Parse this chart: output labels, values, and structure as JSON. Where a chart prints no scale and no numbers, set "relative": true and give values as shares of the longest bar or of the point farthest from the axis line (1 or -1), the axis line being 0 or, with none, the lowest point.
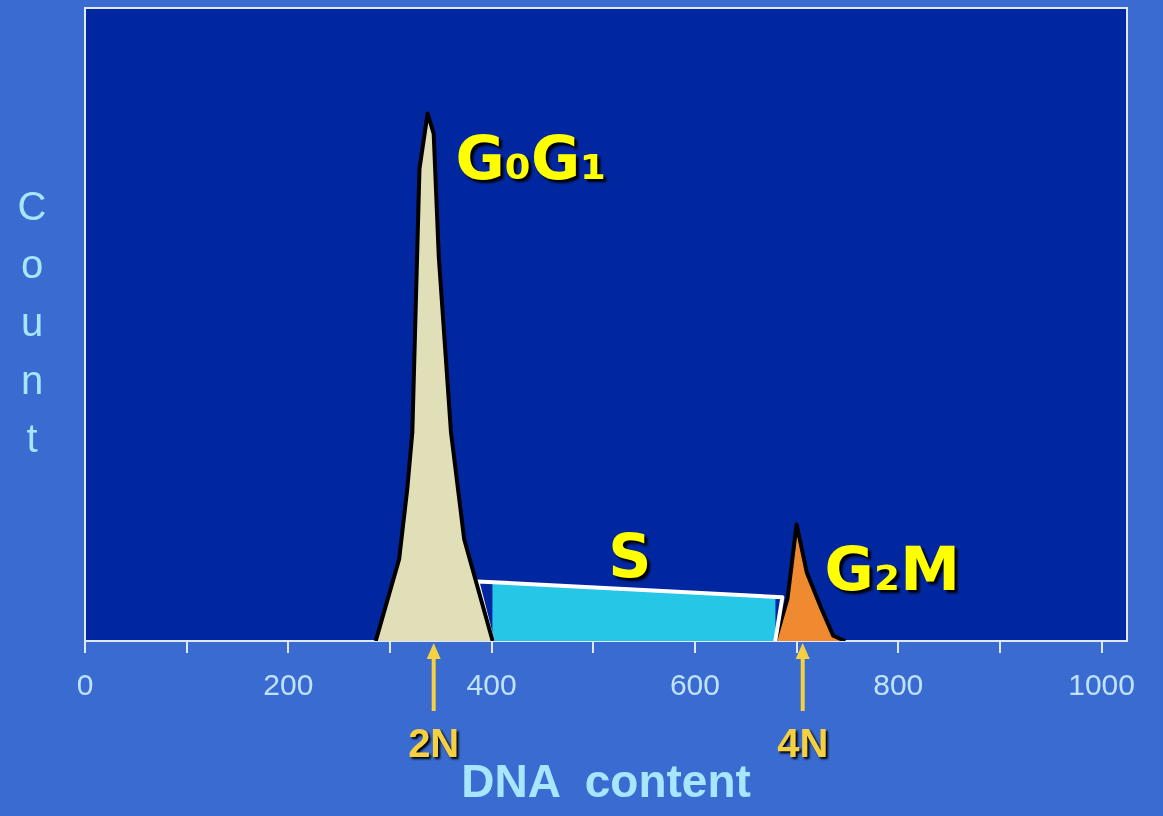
{
  "chart_data": {
    "type": "area",
    "relative": true,
    "xlabel": "DNA  content",
    "ylabel": "Count",
    "xlim": [
      0,
      1025
    ],
    "xticks": [
      0,
      {
        "value": 100,
        "label": null
      },
      200,
      {
        "value": 300,
        "label": null
      },
      400,
      {
        "value": 500,
        "label": null
      },
      600,
      {
        "value": 700,
        "label": null
      },
      800,
      {
        "value": 900,
        "label": null
      },
      1000
    ],
    "series": [
      {
        "name": "G₀G₁",
        "color": "#e0dfb7",
        "x": [
          286,
          309,
          317,
          322,
          329,
          337,
          343,
          348,
          360,
          373,
          401
        ],
        "values": [
          0,
          0.155,
          0.288,
          0.396,
          0.895,
          1,
          0.962,
          0.729,
          0.396,
          0.193,
          0
        ]
      },
      {
        "name": "S",
        "color": "#26c6e6",
        "x": [
          401,
          386,
          686,
          679
        ],
        "values": [
          0,
          0.113,
          0.083,
          0
        ]
      },
      {
        "name": "G₂M",
        "color": "#f08a30",
        "x": [
          679,
          691,
          700,
          710,
          724,
          736,
          748
        ],
        "values": [
          0,
          0.08,
          0.221,
          0.13,
          0.063,
          0.01,
          0
        ]
      }
    ],
    "annotations": [
      {
        "text": "2N",
        "x": 343,
        "y": 0
      },
      {
        "text": "4N",
        "x": 706,
        "y": 0
      }
    ],
    "grid": false,
    "legend": false,
    "marker": "none"
  }
}
